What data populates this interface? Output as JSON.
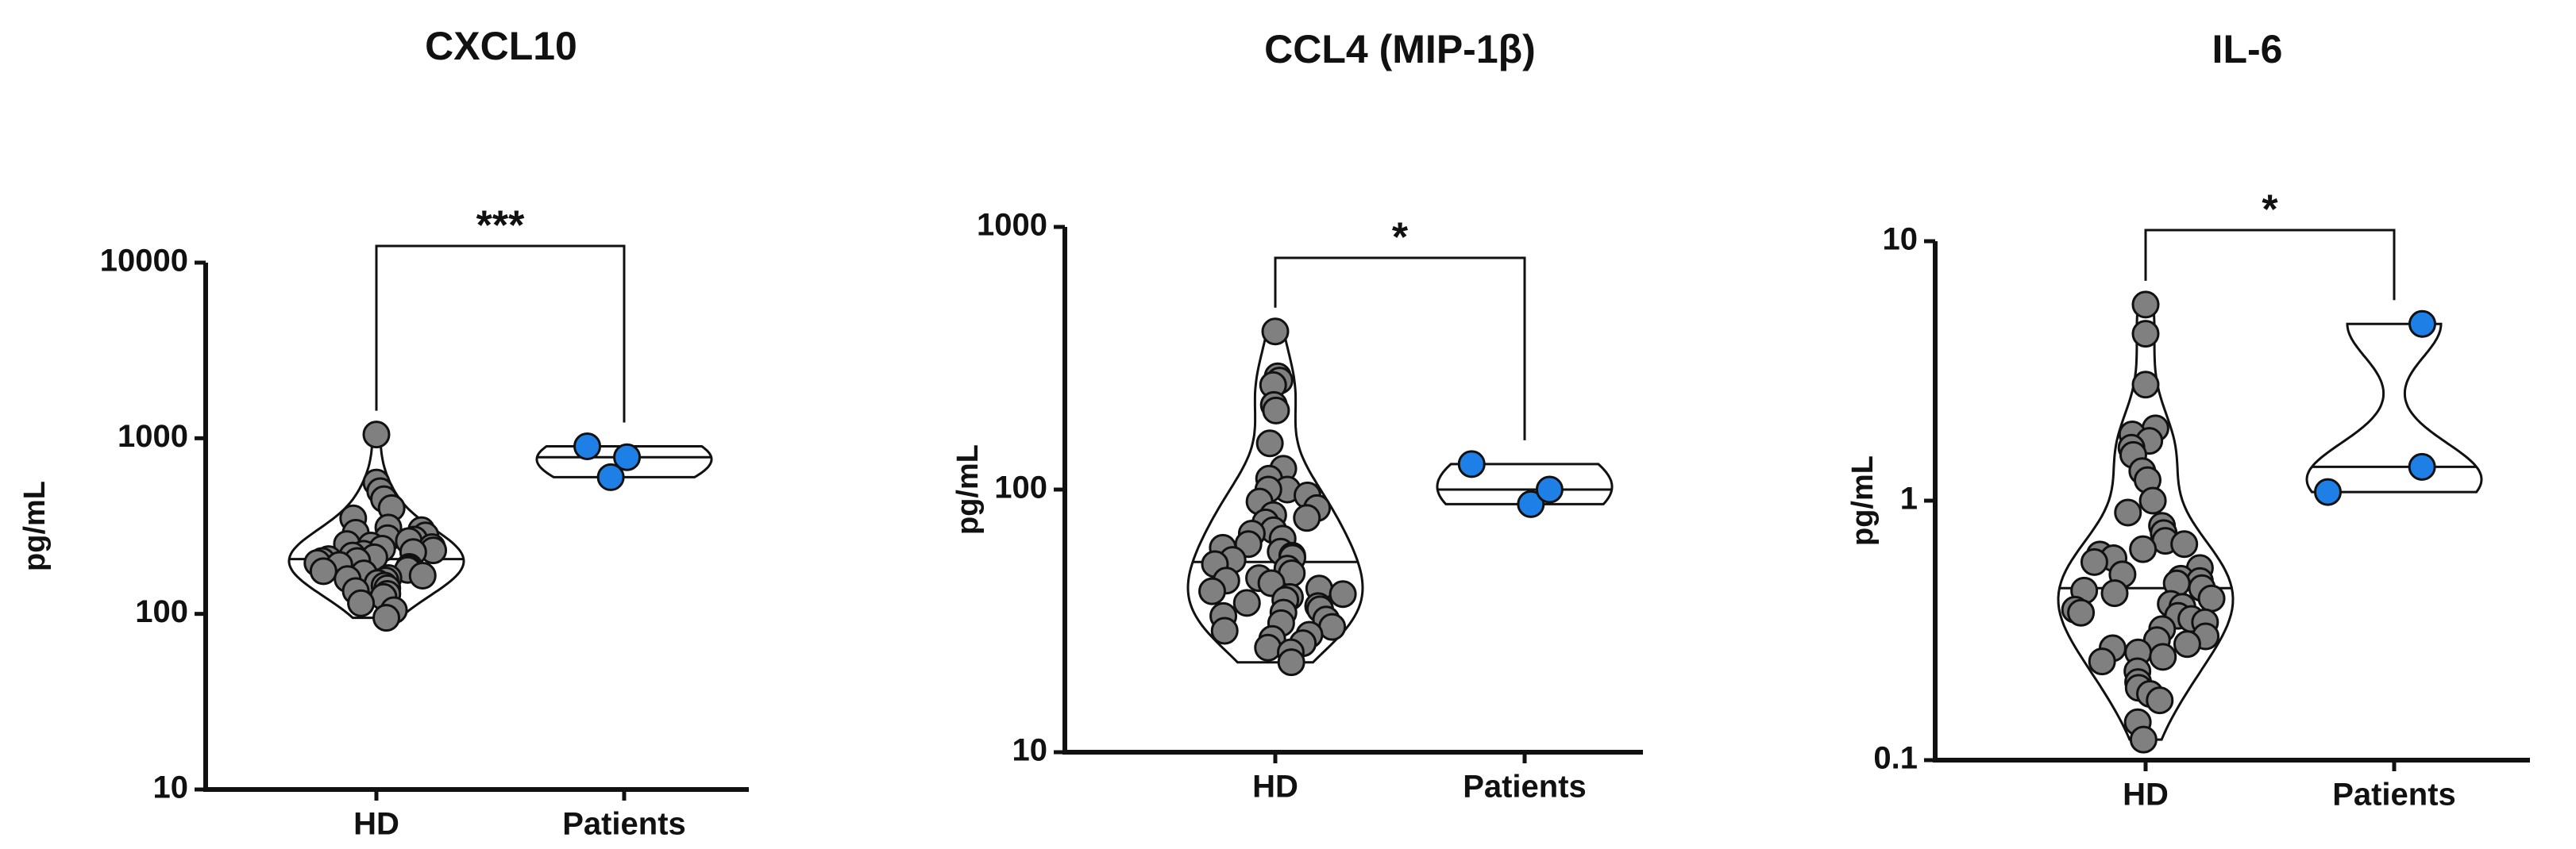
{
  "chart_data": [
    {
      "type": "violin",
      "title": "CXCL10",
      "ylabel": "pg/mL",
      "log_scale": true,
      "categories": [
        "HD",
        "Patients"
      ],
      "colors": [
        "#808080",
        "#1e7fe6"
      ],
      "values": [
        [
          1050,
          560,
          500,
          450,
          400,
          350,
          310,
          300,
          290,
          280,
          270,
          265,
          260,
          250,
          245,
          240,
          235,
          230,
          225,
          220,
          215,
          210,
          205,
          200,
          200,
          195,
          190,
          185,
          180,
          178,
          175,
          170,
          165,
          160,
          158,
          155,
          150,
          145,
          140,
          135,
          130,
          125,
          115,
          105,
          95
        ],
        [
          600,
          780,
          900
        ]
      ],
      "ylim": [
        10,
        10000
      ],
      "yticks": [
        10,
        100,
        1000,
        10000
      ],
      "annotation": "***"
    },
    {
      "type": "violin",
      "title": "CCL4 (MIP-1β)",
      "ylabel": "pg/mL",
      "log_scale": true,
      "categories": [
        "HD",
        "Patients"
      ],
      "colors": [
        "#808080",
        "#1e7fe6"
      ],
      "values": [
        [
          400,
          270,
          260,
          250,
          210,
          200,
          150,
          120,
          110,
          100,
          100,
          95,
          90,
          85,
          80,
          78,
          75,
          70,
          68,
          65,
          62,
          60,
          58,
          56,
          55,
          54,
          52,
          50,
          48,
          46,
          45,
          44,
          42,
          41,
          40,
          39,
          38,
          37,
          36,
          35,
          34,
          33,
          32,
          31,
          30,
          29,
          28,
          27,
          26,
          25,
          24,
          22
        ],
        [
          88,
          100,
          125
        ]
      ],
      "ylim": [
        10,
        1000
      ],
      "yticks": [
        10,
        100,
        1000
      ],
      "annotation": "*"
    },
    {
      "type": "violin",
      "title": "IL-6",
      "ylabel": "pg/mL",
      "log_scale": true,
      "categories": [
        "HD",
        "Patients"
      ],
      "colors": [
        "#808080",
        "#1e7fe6"
      ],
      "values": [
        [
          5.7,
          4.4,
          2.8,
          1.9,
          1.8,
          1.7,
          1.6,
          1.5,
          1.3,
          1.2,
          1.0,
          0.9,
          0.8,
          0.75,
          0.7,
          0.68,
          0.65,
          0.62,
          0.6,
          0.58,
          0.55,
          0.52,
          0.5,
          0.49,
          0.48,
          0.46,
          0.45,
          0.44,
          0.42,
          0.4,
          0.39,
          0.38,
          0.37,
          0.36,
          0.35,
          0.34,
          0.32,
          0.3,
          0.29,
          0.28,
          0.27,
          0.26,
          0.25,
          0.24,
          0.22,
          0.2,
          0.19,
          0.18,
          0.17,
          0.14,
          0.12
        ],
        [
          1.08,
          1.35,
          4.8
        ]
      ],
      "ylim": [
        0.1,
        10
      ],
      "yticks": [
        0.1,
        1,
        10
      ],
      "annotation": "*"
    }
  ]
}
